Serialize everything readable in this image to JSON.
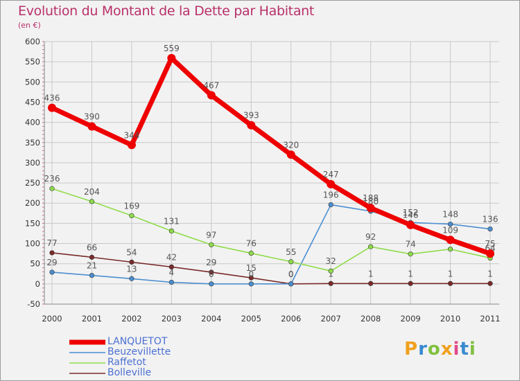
{
  "title": "Evolution du Montant de la Dette par Habitant",
  "subtitle": "(en €)",
  "brand": "Proxiti",
  "colors": {
    "title": "#b8306a",
    "legend_text": "#4a6fd0",
    "background": "#f2f2f2"
  },
  "chart_data": {
    "type": "line",
    "title": "Evolution du Montant de la Dette par Habitant",
    "subtitle": "(en €)",
    "xlabel": "",
    "ylabel": "",
    "x": [
      "2000",
      "2001",
      "2002",
      "2003",
      "2004",
      "2005",
      "2006",
      "2007",
      "2008",
      "2009",
      "2010",
      "2011"
    ],
    "ylim": [
      -50,
      600
    ],
    "yticks": [
      "-50",
      "0",
      "50",
      "100",
      "150",
      "200",
      "250",
      "300",
      "350",
      "400",
      "450",
      "500",
      "550",
      "600"
    ],
    "grid": true,
    "legend_position": "bottom-left",
    "series": [
      {
        "name": "Bolleville",
        "color": "#7a2a2a",
        "values": [
          77,
          66,
          54,
          42,
          29,
          15,
          0,
          1,
          1,
          1,
          1,
          1
        ],
        "labels": [
          "77",
          "66",
          "54",
          "42",
          "29",
          "15",
          "0",
          "1",
          "1",
          "1",
          "1",
          "1"
        ]
      },
      {
        "name": "Beuzevillette",
        "color": "#4b8ed0",
        "values": [
          29,
          21,
          13,
          4,
          0,
          0,
          0,
          196,
          180,
          152,
          148,
          136
        ],
        "labels": [
          "29",
          "21",
          "13",
          "4",
          "0",
          "0",
          "0",
          "196",
          "180",
          "152",
          "148",
          "136"
        ]
      },
      {
        "name": "Raffetot",
        "color": "#8fdc4a",
        "values": [
          236,
          204,
          169,
          131,
          97,
          76,
          55,
          32,
          92,
          74,
          86,
          64
        ],
        "labels": [
          "236",
          "204",
          "169",
          "131",
          "97",
          "76",
          "55",
          "32",
          "92",
          "74",
          "",
          "64"
        ]
      },
      {
        "name": "LANQUETOT",
        "color": "#ee0000",
        "values": [
          436,
          390,
          344,
          559,
          467,
          393,
          320,
          247,
          188,
          146,
          109,
          75
        ],
        "labels": [
          "436",
          "390",
          "344",
          "559",
          "467",
          "393",
          "320",
          "247",
          "188",
          "146",
          "109",
          "75"
        ]
      }
    ],
    "legend": [
      "LANQUETOT",
      "Beuzevillette",
      "Raffetot",
      "Bolleville"
    ]
  }
}
